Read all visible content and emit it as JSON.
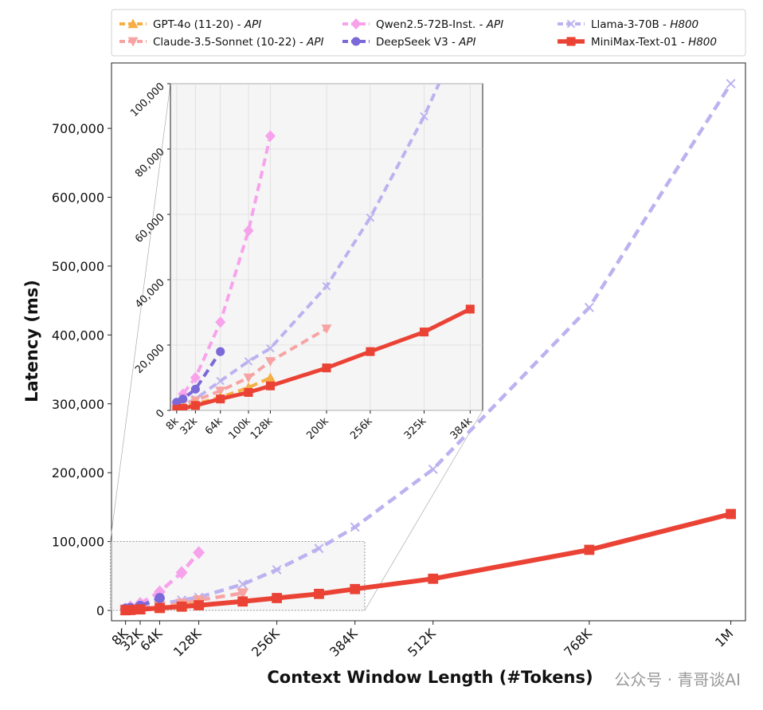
{
  "chart_data": {
    "type": "line",
    "xlabel": "Context Window Length (#Tokens)",
    "ylabel": "Latency (ms)",
    "x_ticks": [
      {
        "value": 8,
        "label": "8K"
      },
      {
        "value": 32,
        "label": "32K"
      },
      {
        "value": 64,
        "label": "64K"
      },
      {
        "value": 128,
        "label": "128K"
      },
      {
        "value": 256,
        "label": "256K"
      },
      {
        "value": 384,
        "label": "384K"
      },
      {
        "value": 512,
        "label": "512K"
      },
      {
        "value": 768,
        "label": "768K"
      },
      {
        "value": 1000,
        "label": "1M"
      }
    ],
    "y_ticks": [
      {
        "value": 0,
        "label": "0"
      },
      {
        "value": 100000,
        "label": "100,000"
      },
      {
        "value": 200000,
        "label": "200,000"
      },
      {
        "value": 300000,
        "label": "300,000"
      },
      {
        "value": 400000,
        "label": "400,000"
      },
      {
        "value": 500000,
        "label": "500,000"
      },
      {
        "value": 600000,
        "label": "600,000"
      },
      {
        "value": 700000,
        "label": "700,000"
      }
    ],
    "xlim": [
      -15,
      1024
    ],
    "ylim": [
      -15000,
      795000
    ],
    "grid": false,
    "legend_position": "top",
    "inset": {
      "xlim": [
        0,
        400
      ],
      "ylim": [
        0,
        100000
      ],
      "grid": true,
      "x_ticks": [
        {
          "value": 8,
          "label": "8k"
        },
        {
          "value": 32,
          "label": "32k"
        },
        {
          "value": 64,
          "label": "64k"
        },
        {
          "value": 100,
          "label": "100k"
        },
        {
          "value": 128,
          "label": "128k"
        },
        {
          "value": 200,
          "label": "200k"
        },
        {
          "value": 256,
          "label": "256k"
        },
        {
          "value": 325,
          "label": "325k"
        },
        {
          "value": 384,
          "label": "384k"
        }
      ],
      "y_ticks": [
        {
          "value": 0,
          "label": "0"
        },
        {
          "value": 20000,
          "label": "20,000"
        },
        {
          "value": 40000,
          "label": "40,000"
        },
        {
          "value": 60000,
          "label": "60,000"
        },
        {
          "value": 80000,
          "label": "80,000"
        },
        {
          "value": 100000,
          "label": "100,000"
        }
      ]
    },
    "series": [
      {
        "name": "GPT-4o (11-20) - ",
        "deployment": "API",
        "color": "#f6ae45",
        "marker": "triangle-up",
        "dashed": true,
        "x": [
          8,
          16,
          32,
          64,
          100,
          128
        ],
        "y": [
          800,
          1200,
          2000,
          4000,
          7000,
          10000
        ]
      },
      {
        "name": "Claude-3.5-Sonnet (10-22) - ",
        "deployment": "API",
        "color": "#f7a3a3",
        "marker": "triangle-down",
        "dashed": true,
        "x": [
          8,
          16,
          32,
          64,
          100,
          128,
          200
        ],
        "y": [
          1500,
          2000,
          3000,
          6000,
          10000,
          15000,
          25000
        ]
      },
      {
        "name": "Qwen2.5-72B-Inst. - ",
        "deployment": "API",
        "color": "#f7a3ec",
        "marker": "diamond",
        "dashed": true,
        "x": [
          8,
          16,
          32,
          64,
          100,
          128
        ],
        "y": [
          2000,
          5000,
          10000,
          27000,
          55000,
          84000
        ]
      },
      {
        "name": "DeepSeek V3 - ",
        "deployment": "API",
        "color": "#7b68d9",
        "marker": "circle",
        "dashed": true,
        "x": [
          8,
          16,
          32,
          64
        ],
        "y": [
          2500,
          3500,
          6500,
          18000
        ]
      },
      {
        "name": "Llama-3-70B - ",
        "deployment": "H800",
        "color": "#bdb2f0",
        "marker": "x",
        "dashed": true,
        "x": [
          8,
          16,
          32,
          64,
          100,
          128,
          200,
          256,
          325,
          384,
          512,
          768,
          1000
        ],
        "y": [
          800,
          1600,
          3500,
          9000,
          15000,
          19000,
          38000,
          59000,
          90000,
          121000,
          205000,
          440000,
          765000
        ]
      },
      {
        "name": "MiniMax-Text-01 - ",
        "deployment": "H800",
        "color": "#ea4335",
        "marker": "square",
        "dashed": false,
        "x": [
          8,
          16,
          32,
          64,
          100,
          128,
          200,
          256,
          325,
          384,
          512,
          768,
          1000
        ],
        "y": [
          300,
          600,
          1500,
          3500,
          5500,
          7500,
          13000,
          18000,
          24000,
          31000,
          46000,
          88000,
          140000
        ]
      }
    ]
  },
  "watermark": "公众号 · 青哥谈AI"
}
